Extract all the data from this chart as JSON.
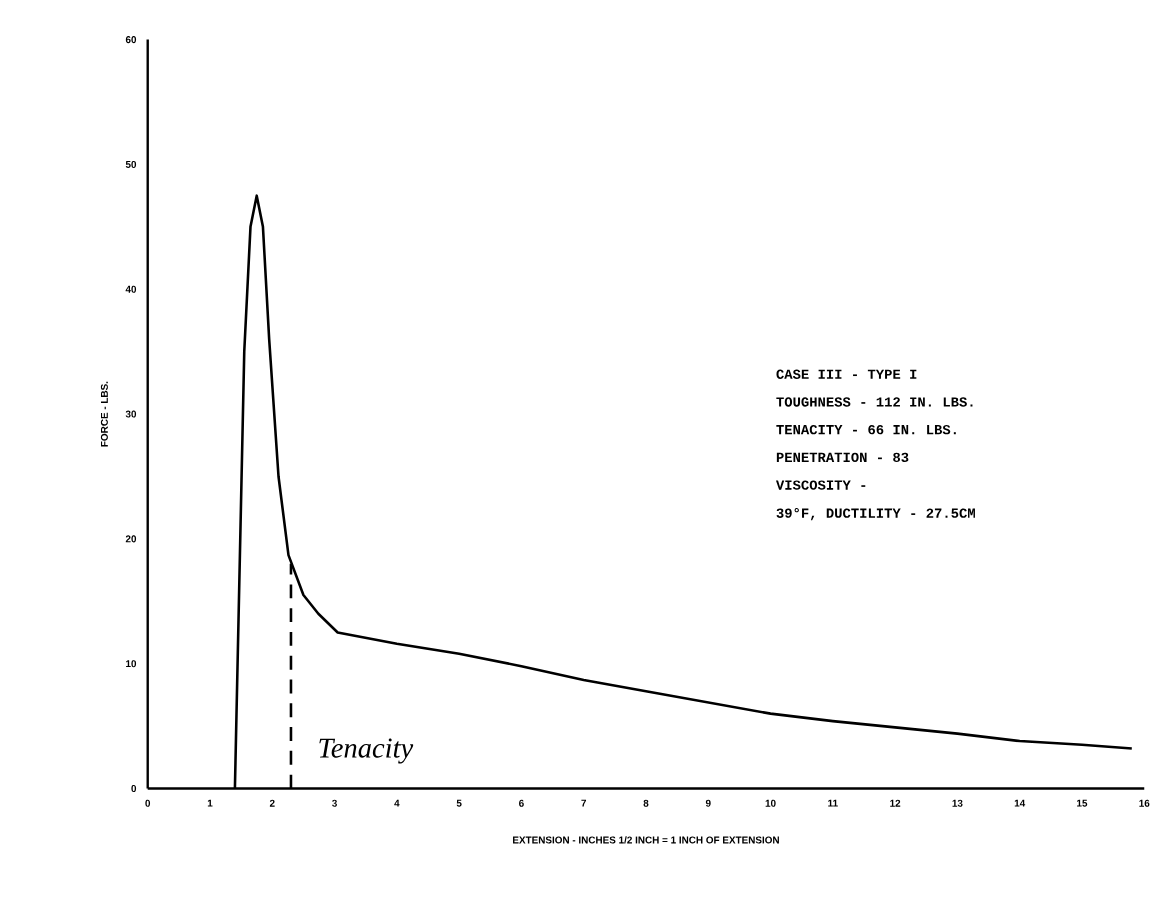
{
  "chart_data": {
    "type": "line",
    "xlabel": "EXTENSION - INCHES  1/2 INCH = 1 INCH OF EXTENSION",
    "ylabel": "FORCE - LBS.",
    "xlim": [
      0,
      16
    ],
    "ylim": [
      0,
      60
    ],
    "xticks": [
      0,
      1,
      2,
      3,
      4,
      5,
      6,
      7,
      8,
      9,
      10,
      11,
      12,
      13,
      14,
      15,
      16
    ],
    "yticks": [
      0,
      10,
      20,
      30,
      40,
      50,
      60
    ],
    "grid": false,
    "marker": "none",
    "series": [
      {
        "color": "#000000",
        "line_style": "solid",
        "x": [
          1.4,
          1.55,
          1.65,
          1.75,
          1.85,
          1.95,
          2.1,
          2.26,
          2.5,
          2.74,
          3.05,
          4,
          5,
          6,
          7,
          8,
          9,
          10,
          11,
          12,
          13,
          14,
          15,
          15.8
        ],
        "values": [
          0,
          35,
          45,
          47.5,
          45,
          36,
          25,
          18.7,
          15.5,
          14,
          12.5,
          11.6,
          10.8,
          9.8,
          8.7,
          7.8,
          6.9,
          6.0,
          5.4,
          4.9,
          4.4,
          3.8,
          3.5,
          3.2
        ]
      },
      {
        "color": "#000000",
        "line_style": "dashed",
        "x": [
          2.3,
          2.3
        ],
        "values": [
          0,
          18
        ]
      }
    ],
    "annotations": [
      "CASE III - TYPE I",
      "TOUGHNESS - 112 IN. LBS.",
      "TENACITY  - 66 IN. LBS.",
      "PENETRATION - 83",
      "VISCOSITY -",
      "39°F, DUCTILITY - 27.5CM",
      "Tenacity"
    ]
  }
}
